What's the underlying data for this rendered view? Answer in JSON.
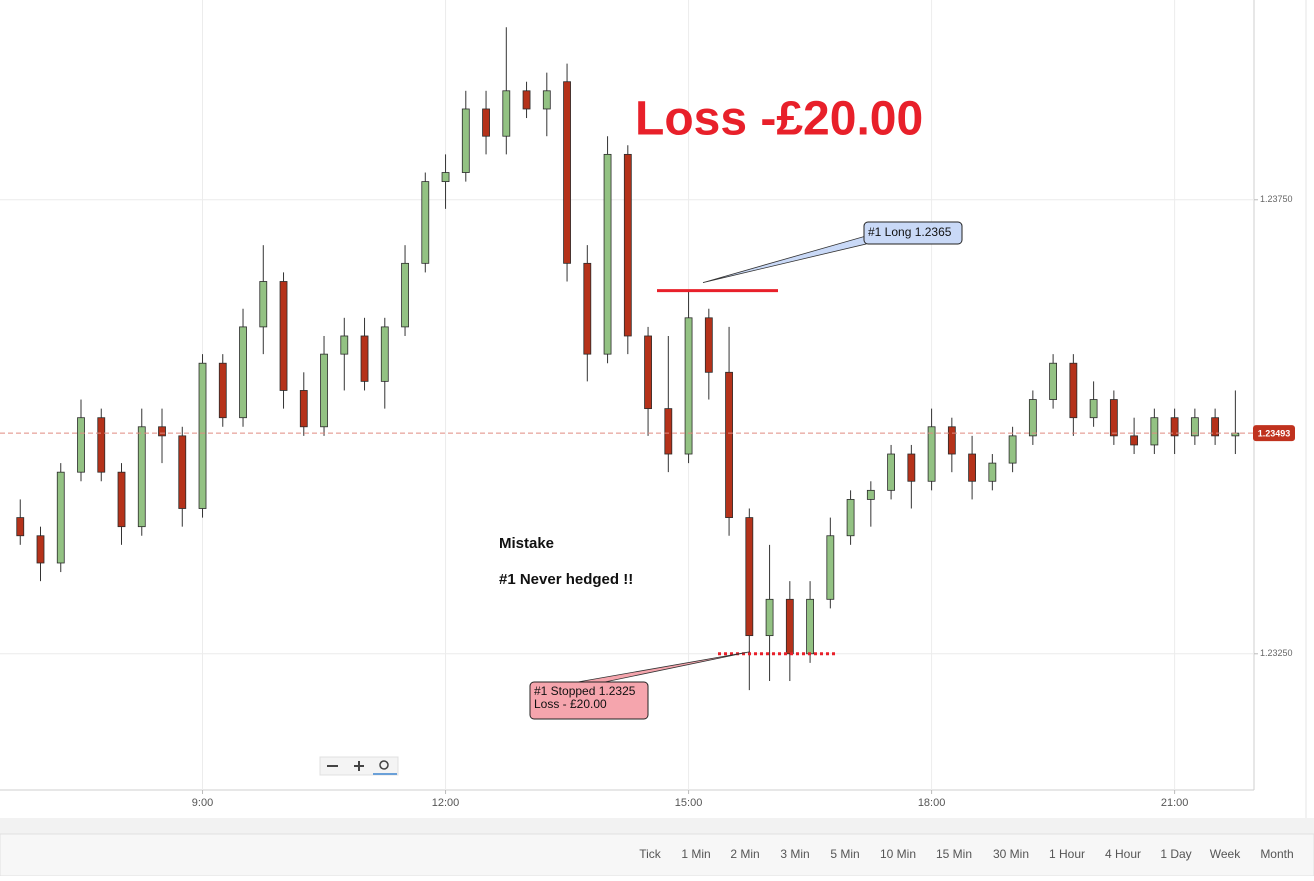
{
  "chart_data": {
    "type": "candlestick",
    "x": [
      6.75,
      7,
      7.25,
      7.5,
      7.75,
      8,
      8.25,
      8.5,
      8.75,
      9,
      9.25,
      9.5,
      9.75,
      10,
      10.25,
      10.5,
      10.75,
      11,
      11.25,
      11.5,
      11.75,
      12,
      12.25,
      12.5,
      12.75,
      13,
      13.25,
      13.5,
      13.75,
      14,
      14.25,
      14.5,
      14.75,
      15,
      15.25,
      15.5,
      15.75,
      16,
      16.25,
      16.5,
      16.75,
      17,
      17.25,
      17.5,
      17.75,
      18,
      18.25,
      18.5,
      18.75,
      19,
      19.25,
      19.5,
      19.75,
      20,
      20.25,
      20.5,
      20.75,
      21,
      21.25,
      21.5,
      21.75
    ],
    "open": [
      1.234,
      1.2338,
      1.2335,
      1.2345,
      1.2351,
      1.2345,
      1.2339,
      1.235,
      1.2349,
      1.2341,
      1.2357,
      1.2351,
      1.2361,
      1.2366,
      1.2354,
      1.235,
      1.2358,
      1.236,
      1.2355,
      1.2361,
      1.2368,
      1.2377,
      1.2378,
      1.2385,
      1.2382,
      1.2387,
      1.2385,
      1.2388,
      1.2368,
      1.2358,
      1.238,
      1.236,
      1.2352,
      1.2347,
      1.2362,
      1.2356,
      1.234,
      1.2327,
      1.2331,
      1.2325,
      1.2331,
      1.2338,
      1.2342,
      1.2343,
      1.2347,
      1.2344,
      1.235,
      1.2347,
      1.2344,
      1.2346,
      1.2349,
      1.2353,
      1.2357,
      1.2351,
      1.2353,
      1.2349,
      1.2348,
      1.2351,
      1.2349,
      1.2351,
      1.2349
    ],
    "high": [
      1.2342,
      1.2339,
      1.2346,
      1.2353,
      1.2352,
      1.2346,
      1.2352,
      1.2352,
      1.235,
      1.2358,
      1.2358,
      1.2363,
      1.237,
      1.2367,
      1.2356,
      1.236,
      1.2362,
      1.2362,
      1.2362,
      1.237,
      1.2378,
      1.238,
      1.2387,
      1.2387,
      1.2394,
      1.2388,
      1.2389,
      1.239,
      1.237,
      1.2382,
      1.2381,
      1.2361,
      1.236,
      1.2365,
      1.2363,
      1.2361,
      1.2341,
      1.2337,
      1.2333,
      1.2333,
      1.234,
      1.2343,
      1.2344,
      1.2348,
      1.2348,
      1.2352,
      1.2351,
      1.2349,
      1.2347,
      1.235,
      1.2354,
      1.2358,
      1.2358,
      1.2355,
      1.2354,
      1.2351,
      1.2352,
      1.2352,
      1.2352,
      1.2352,
      1.2354
    ],
    "low": [
      1.2337,
      1.2333,
      1.2334,
      1.2344,
      1.2344,
      1.2337,
      1.2338,
      1.2346,
      1.2339,
      1.234,
      1.235,
      1.235,
      1.2358,
      1.2352,
      1.2349,
      1.2349,
      1.2354,
      1.2354,
      1.2352,
      1.236,
      1.2367,
      1.2374,
      1.2377,
      1.238,
      1.238,
      1.2384,
      1.2382,
      1.2366,
      1.2355,
      1.2357,
      1.2358,
      1.2349,
      1.2345,
      1.2346,
      1.2353,
      1.2338,
      1.2321,
      1.2322,
      1.2322,
      1.2324,
      1.233,
      1.2337,
      1.2339,
      1.2342,
      1.2341,
      1.2343,
      1.2345,
      1.2342,
      1.2343,
      1.2345,
      1.2348,
      1.2352,
      1.2349,
      1.235,
      1.2348,
      1.2347,
      1.2347,
      1.2347,
      1.2348,
      1.2348,
      1.2347
    ],
    "close": [
      1.2338,
      1.2335,
      1.2345,
      1.2351,
      1.2345,
      1.2339,
      1.235,
      1.2349,
      1.2341,
      1.2357,
      1.2351,
      1.2361,
      1.2366,
      1.2354,
      1.235,
      1.2358,
      1.236,
      1.2355,
      1.2361,
      1.2368,
      1.2377,
      1.2378,
      1.2385,
      1.2382,
      1.2387,
      1.2385,
      1.2387,
      1.2368,
      1.2358,
      1.238,
      1.236,
      1.2352,
      1.2347,
      1.2362,
      1.2356,
      1.234,
      1.2327,
      1.2331,
      1.2325,
      1.2331,
      1.2338,
      1.2342,
      1.2343,
      1.2347,
      1.2344,
      1.235,
      1.2347,
      1.2344,
      1.2346,
      1.2349,
      1.2353,
      1.2357,
      1.2351,
      1.2353,
      1.2349,
      1.2348,
      1.2351,
      1.2349,
      1.2351,
      1.2349,
      1.23493
    ],
    "up_color": "#93c283",
    "down_color": "#b5321a",
    "xlim": [
      6.5,
      21.98
    ],
    "xticks": [
      {
        "value": 9,
        "label": "9:00"
      },
      {
        "value": 12,
        "label": "12:00"
      },
      {
        "value": 15,
        "label": "15:00"
      },
      {
        "value": 18,
        "label": "18:00"
      },
      {
        "value": 21,
        "label": "21:00"
      }
    ],
    "ylim": [
      1.231,
      1.2397
    ],
    "yticks": [
      {
        "value": 1.2325,
        "label": "1.23250"
      },
      {
        "value": 1.2375,
        "label": "1.23750"
      }
    ],
    "grid": true,
    "last_price": {
      "value": 1.23493,
      "label": "1.23493"
    },
    "headline": "Loss -£20.00",
    "note_title": "Mistake",
    "note": "#1 Never hedged !!",
    "entry": {
      "value": 1.2365,
      "label": "#1 Long 1.2365"
    },
    "stop": {
      "value": 1.2325,
      "label": "#1 Stopped 1.2325",
      "label2": "Loss - £20.00"
    }
  },
  "toolbar": {
    "timeframes": [
      "Tick",
      "1 Min",
      "2 Min",
      "3 Min",
      "5 Min",
      "10 Min",
      "15 Min",
      "30 Min",
      "1 Hour",
      "4 Hour",
      "1 Day",
      "Week",
      "Month"
    ]
  }
}
